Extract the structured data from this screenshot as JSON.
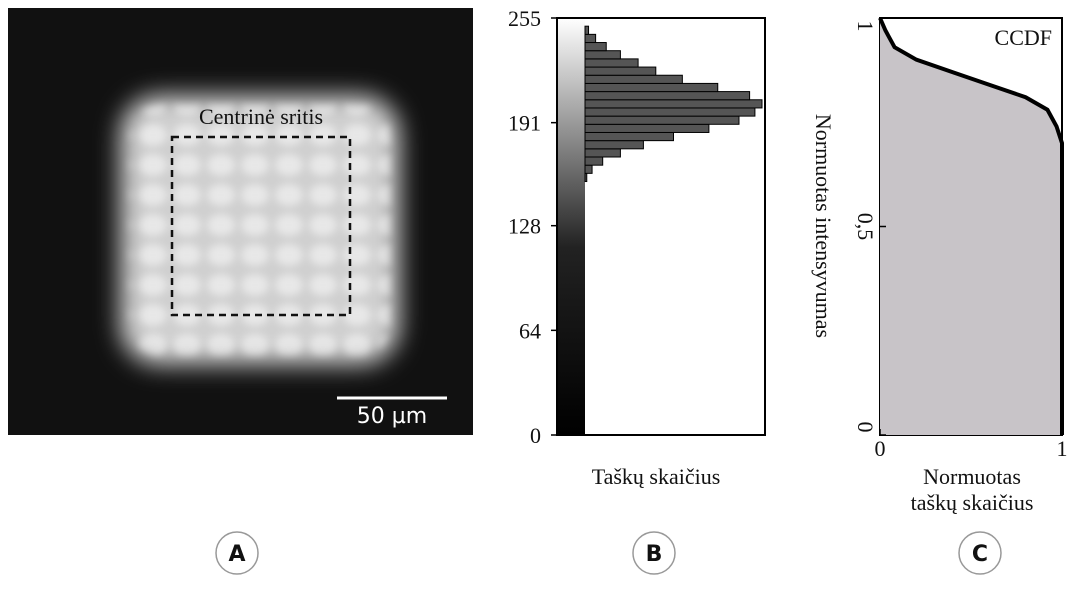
{
  "panel_a": {
    "annotation": "Centrinė sritis",
    "scale_bar": "50 µm"
  },
  "panel_labels": [
    "A",
    "B",
    "C"
  ],
  "chart_data": [
    {
      "type": "histogram",
      "orientation": "horizontal",
      "xlabel": "Taškų skaičius",
      "bins": [
        155,
        160,
        165,
        170,
        175,
        180,
        185,
        190,
        195,
        200,
        205,
        210,
        215,
        220,
        225,
        230,
        235,
        240,
        245,
        250
      ],
      "values": [
        0.01,
        0.04,
        0.1,
        0.2,
        0.33,
        0.5,
        0.7,
        0.87,
        0.96,
        1.0,
        0.93,
        0.75,
        0.55,
        0.4,
        0.3,
        0.2,
        0.12,
        0.06,
        0.02
      ],
      "color": "#555555",
      "xlim": [
        0,
        1
      ],
      "ylim": [
        0,
        255
      ],
      "yticks": [
        0,
        64,
        128,
        191,
        255
      ]
    },
    {
      "type": "line",
      "xlabel": [
        "Normuotas",
        "taškų skaičius"
      ],
      "ylabel": "Normuotas intensyvumas",
      "annotation": "CCDF",
      "x": [
        0,
        0.03,
        0.08,
        0.2,
        0.4,
        0.6,
        0.8,
        0.92,
        0.97,
        1.0,
        1.0
      ],
      "values": [
        1,
        0.97,
        0.93,
        0.9,
        0.87,
        0.84,
        0.81,
        0.78,
        0.74,
        0.7,
        0
      ],
      "color": "#000000",
      "fill": "#c8c4c8",
      "xlim": [
        0,
        1
      ],
      "ylim": [
        0,
        1
      ],
      "xticks": [
        0,
        1
      ],
      "yticks": [
        0,
        {
          "value": 0.5,
          "label": "0,5"
        },
        1
      ]
    }
  ]
}
